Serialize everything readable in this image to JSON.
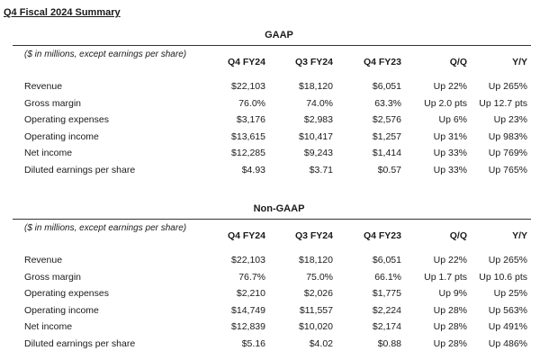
{
  "title": "Q4 Fiscal 2024 Summary",
  "columns": [
    "Q4 FY24",
    "Q3 FY24",
    "Q4 FY23",
    "Q/Q",
    "Y/Y"
  ],
  "gaap": {
    "label": "GAAP",
    "note": "($ in millions, except earnings per share)",
    "rows": [
      {
        "label": "Revenue",
        "values": [
          "$22,103",
          "$18,120",
          "$6,051",
          "Up 22%",
          "Up 265%"
        ]
      },
      {
        "label": "Gross margin",
        "values": [
          "76.0%",
          "74.0%",
          "63.3%",
          "Up 2.0 pts",
          "Up 12.7 pts"
        ]
      },
      {
        "label": "Operating expenses",
        "values": [
          "$3,176",
          "$2,983",
          "$2,576",
          "Up 6%",
          "Up 23%"
        ]
      },
      {
        "label": "Operating income",
        "values": [
          "$13,615",
          "$10,417",
          "$1,257",
          "Up 31%",
          "Up 983%"
        ]
      },
      {
        "label": "Net income",
        "values": [
          "$12,285",
          "$9,243",
          "$1,414",
          "Up 33%",
          "Up 769%"
        ]
      },
      {
        "label": "Diluted earnings per share",
        "values": [
          "$4.93",
          "$3.71",
          "$0.57",
          "Up 33%",
          "Up 765%"
        ]
      }
    ]
  },
  "nongaap": {
    "label": "Non-GAAP",
    "note": "($ in millions, except earnings per share)",
    "rows": [
      {
        "label": "Revenue",
        "values": [
          "$22,103",
          "$18,120",
          "$6,051",
          "Up 22%",
          "Up 265%"
        ]
      },
      {
        "label": "Gross margin",
        "values": [
          "76.7%",
          "75.0%",
          "66.1%",
          "Up 1.7 pts",
          "Up 10.6 pts"
        ]
      },
      {
        "label": "Operating expenses",
        "values": [
          "$2,210",
          "$2,026",
          "$1,775",
          "Up 9%",
          "Up 25%"
        ]
      },
      {
        "label": "Operating income",
        "values": [
          "$14,749",
          "$11,557",
          "$2,224",
          "Up 28%",
          "Up 563%"
        ]
      },
      {
        "label": "Net income",
        "values": [
          "$12,839",
          "$10,020",
          "$2,174",
          "Up 28%",
          "Up 491%"
        ]
      },
      {
        "label": "Diluted earnings per share",
        "values": [
          "$5.16",
          "$4.02",
          "$0.88",
          "Up 28%",
          "Up 486%"
        ]
      }
    ]
  }
}
